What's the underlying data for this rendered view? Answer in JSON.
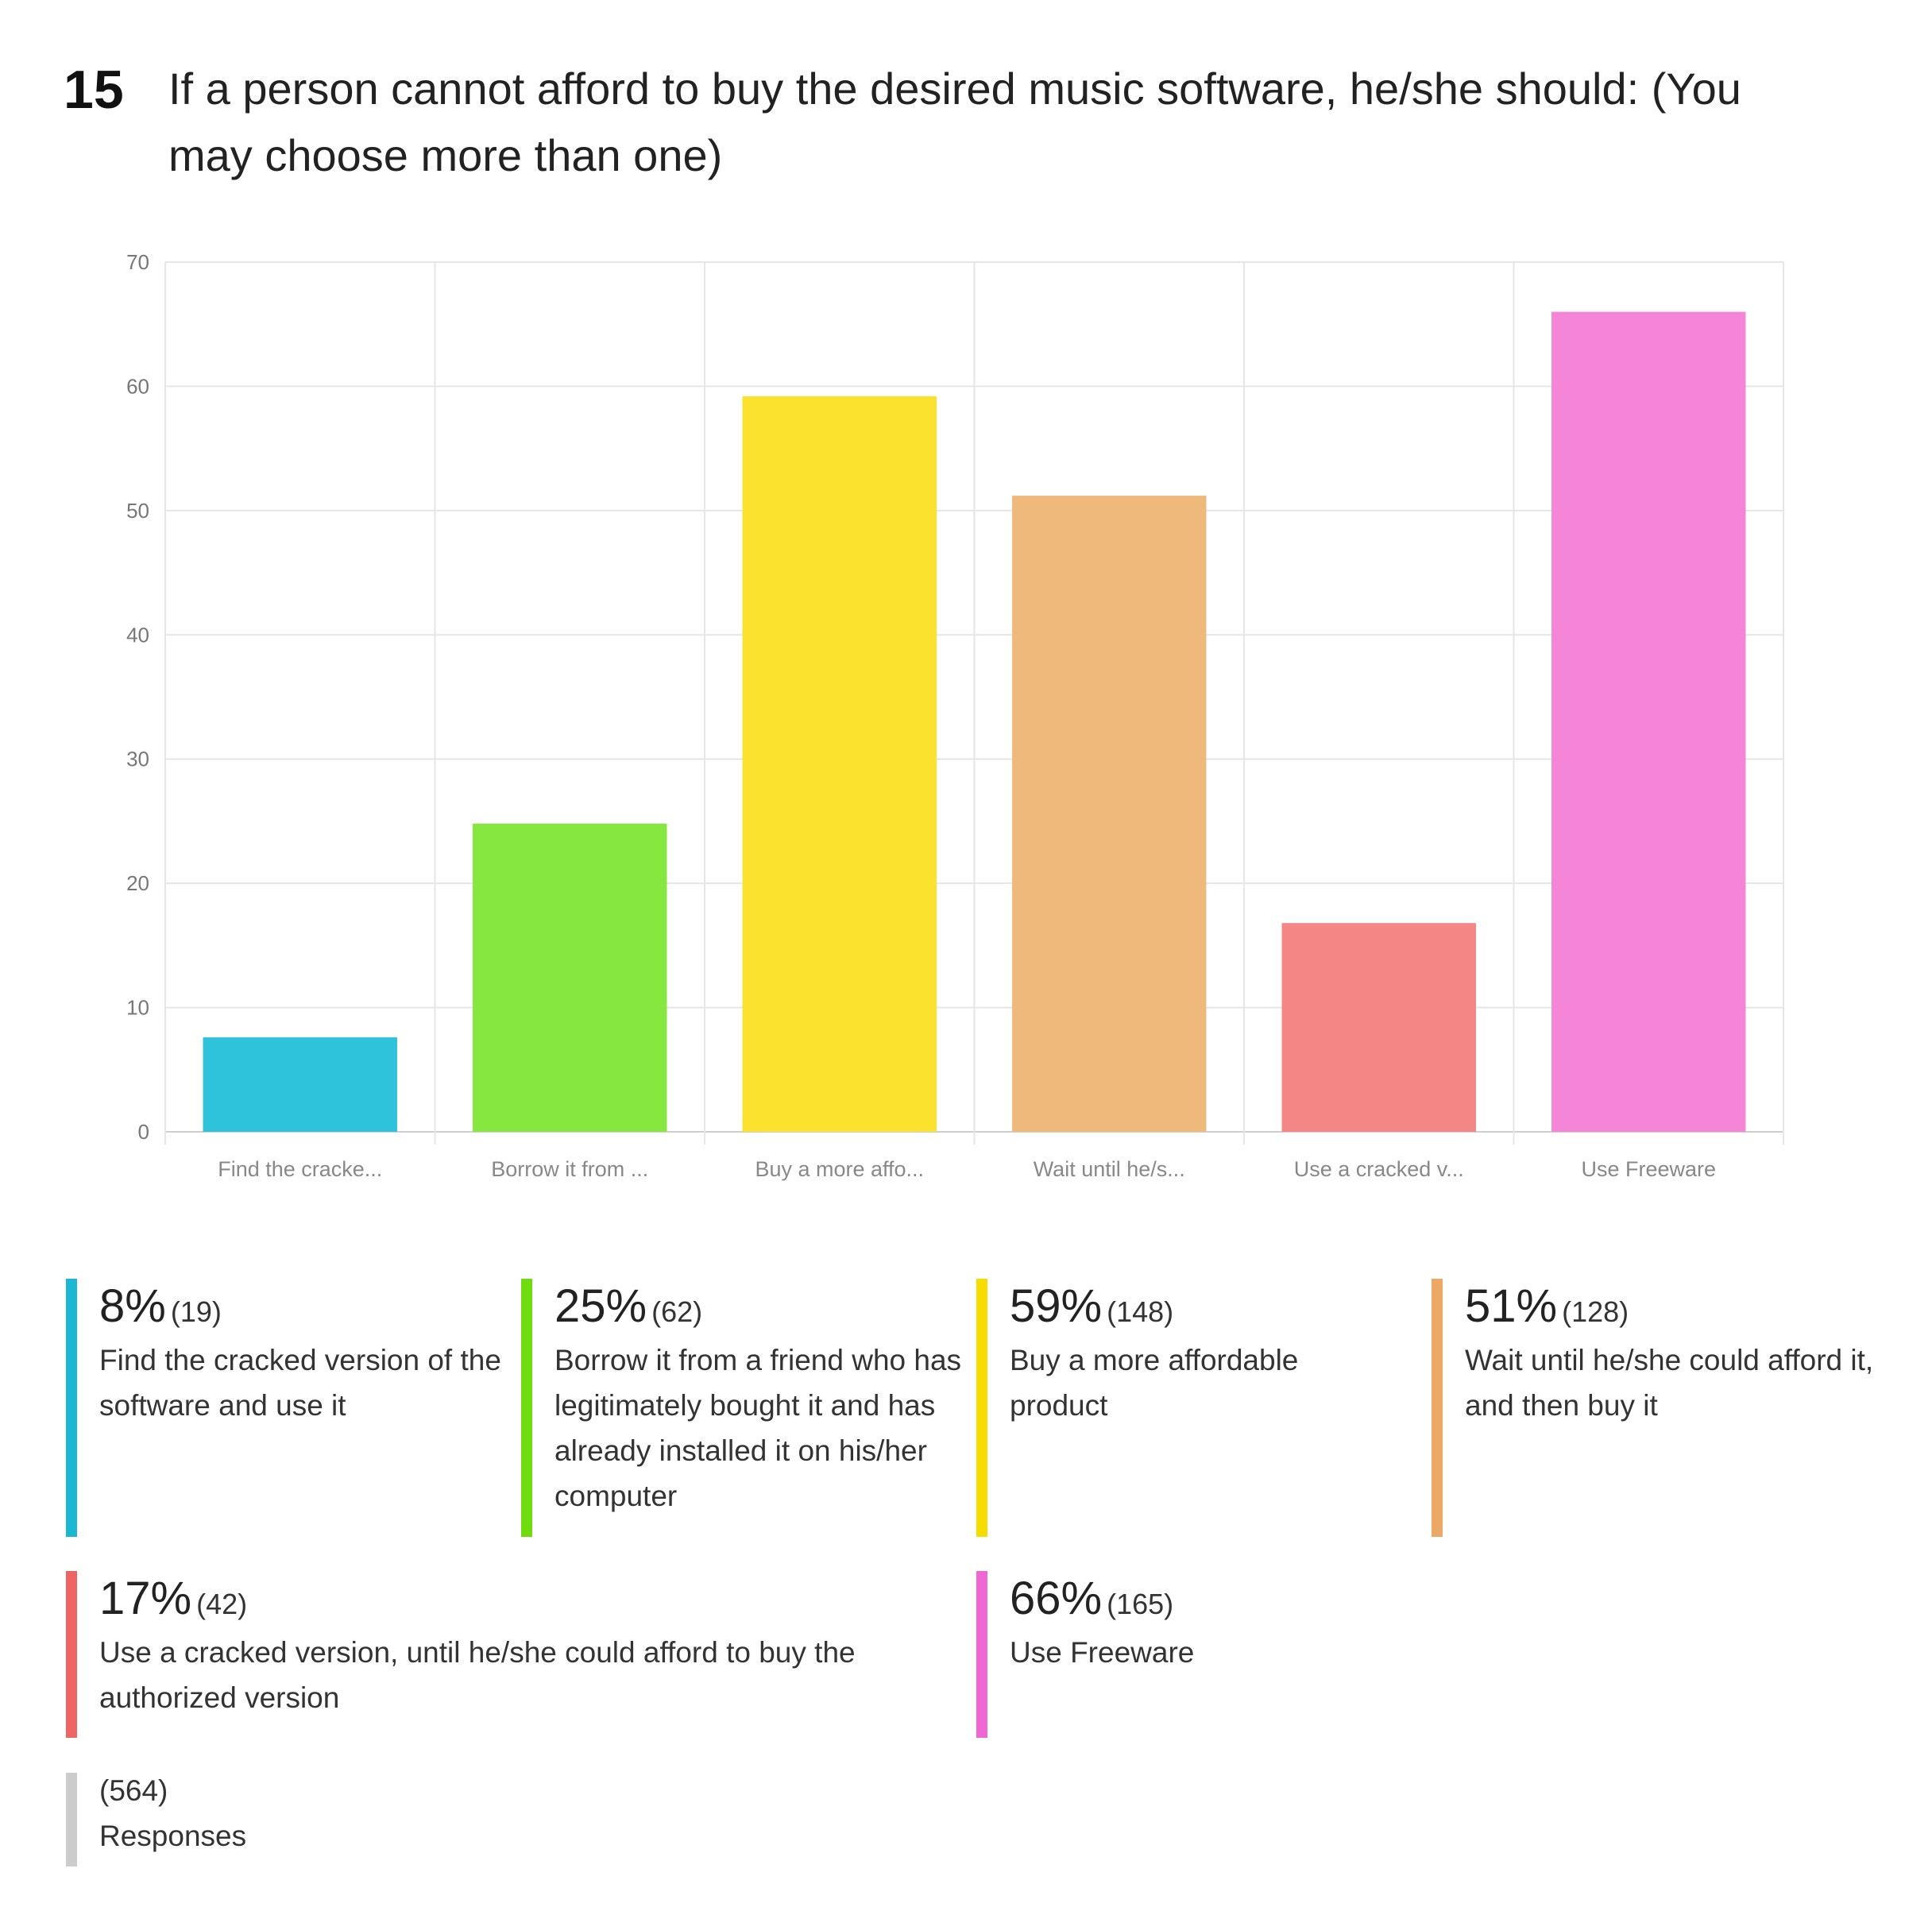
{
  "question": {
    "number": "15",
    "title": "If a person cannot afford to buy the desired music software, he/she should: (You may choose more than one)"
  },
  "chart_data": {
    "type": "bar",
    "categories": [
      "Find the cracke...",
      "Borrow it from ...",
      "Buy a more affo...",
      "Wait until he/s...",
      "Use a cracked v...",
      "Use Freeware"
    ],
    "values": [
      7.6,
      24.8,
      59.2,
      51.2,
      16.8,
      66.0
    ],
    "colors": [
      "#2ec3db",
      "#86e83e",
      "#fbe22e",
      "#f0b97c",
      "#f48686",
      "#f585d7"
    ],
    "ylim": [
      0,
      70
    ],
    "yticks": [
      0,
      10,
      20,
      30,
      40,
      50,
      60,
      70
    ],
    "grid": true,
    "xlabel": "",
    "ylabel": ""
  },
  "legend": [
    {
      "pct": "8%",
      "count": "(19)",
      "label": "Find the cracked version of the software and use it",
      "color": "#1bb7d3"
    },
    {
      "pct": "25%",
      "count": "(62)",
      "label": "Borrow it from a friend who has legitimately bought it and has already installed it on his/her computer",
      "color": "#6fdc10"
    },
    {
      "pct": "59%",
      "count": "(148)",
      "label": "Buy a more affordable product",
      "color": "#f7dc00"
    },
    {
      "pct": "51%",
      "count": "(128)",
      "label": "Wait until he/she could afford it, and then buy it",
      "color": "#eda865"
    },
    {
      "pct": "17%",
      "count": "(42)",
      "label": "Use a cracked version, until he/she could afford to buy the authorized version",
      "color": "#ef6563"
    },
    {
      "pct": "66%",
      "count": "(165)",
      "label": "Use Freeware",
      "color": "#ee67d3"
    }
  ],
  "responses": {
    "count": "(564)",
    "label": "Responses",
    "color": "#cccccc"
  }
}
